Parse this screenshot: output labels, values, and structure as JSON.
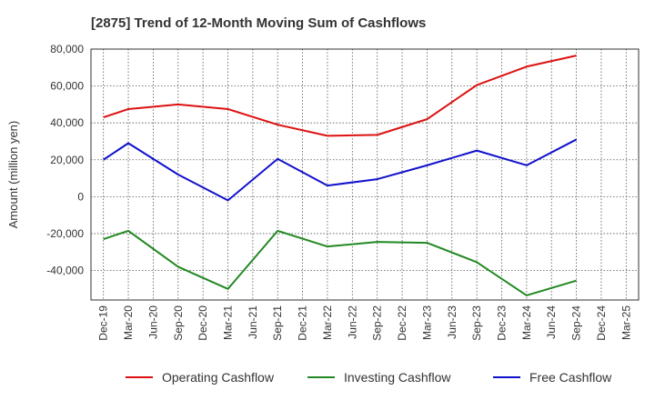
{
  "chart_data": {
    "type": "line",
    "title": "[2875]  Trend of 12-Month Moving Sum of Cashflows",
    "xlabel": "",
    "ylabel": "Amount (million yen)",
    "ylim": [
      -56000,
      80000
    ],
    "yticks": [
      80000,
      60000,
      40000,
      20000,
      0,
      -20000,
      -40000
    ],
    "ytick_labels": [
      "80,000",
      "60,000",
      "40,000",
      "20,000",
      "0",
      "-20,000",
      "-40,000"
    ],
    "categories": [
      "Dec-19",
      "Mar-20",
      "Jun-20",
      "Sep-20",
      "Dec-20",
      "Mar-21",
      "Jun-21",
      "Sep-21",
      "Dec-21",
      "Mar-22",
      "Jun-22",
      "Sep-22",
      "Dec-22",
      "Mar-23",
      "Jun-23",
      "Sep-23",
      "Dec-23",
      "Mar-24",
      "Jun-24",
      "Sep-24",
      "Dec-24",
      "Mar-25"
    ],
    "grid": true,
    "legend_position": "bottom",
    "series": [
      {
        "name": "Operating Cashflow",
        "color": "#dd1111",
        "values": [
          43000,
          47500,
          null,
          50000,
          null,
          47500,
          null,
          39000,
          null,
          33000,
          null,
          33500,
          null,
          42000,
          null,
          60500,
          null,
          70500,
          null,
          76500,
          null,
          null
        ]
      },
      {
        "name": "Investing Cashflow",
        "color": "#228822",
        "values": [
          -23000,
          -18500,
          null,
          -38000,
          null,
          -50000,
          null,
          -18500,
          null,
          -27000,
          null,
          -24500,
          null,
          -25000,
          null,
          -35500,
          null,
          -53500,
          null,
          -45500,
          null,
          null
        ]
      },
      {
        "name": "Free Cashflow",
        "color": "#1111cc",
        "values": [
          20000,
          29000,
          null,
          12000,
          null,
          -2000,
          null,
          20500,
          null,
          6000,
          null,
          9500,
          null,
          17000,
          null,
          25000,
          null,
          17000,
          null,
          31000,
          null,
          null
        ]
      }
    ]
  }
}
